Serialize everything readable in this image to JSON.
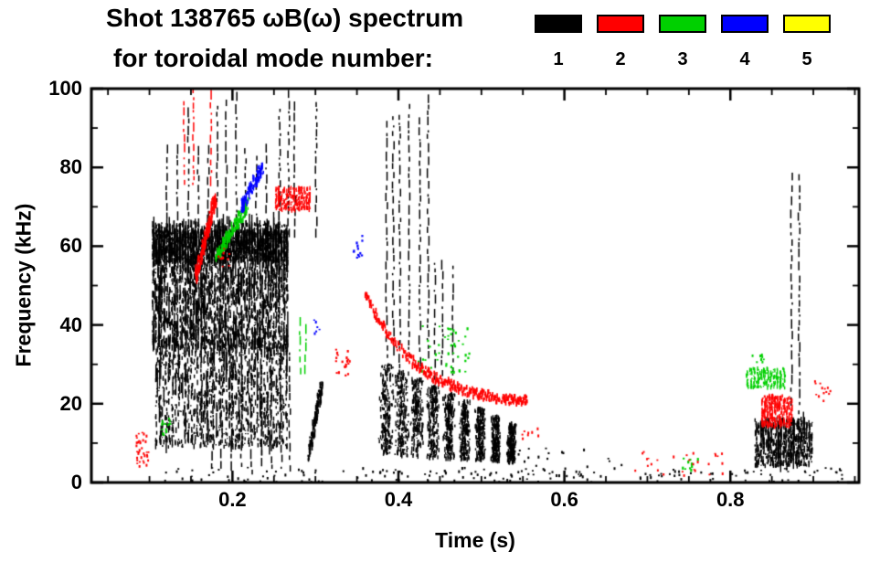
{
  "chart_data": {
    "type": "scatter",
    "title": "Shot 138765 ωB(ω) spectrum",
    "subtitle": "for toroidal mode number:",
    "xlabel": "Time (s)",
    "ylabel": "Frequency (kHz)",
    "xlim": [
      0.03,
      0.955
    ],
    "ylim": [
      0,
      100
    ],
    "xticks": [
      0.2,
      0.4,
      0.6,
      0.8
    ],
    "xtick_labels": [
      "0.2",
      "0.4",
      "0.6",
      "0.8"
    ],
    "yticks": [
      0,
      20,
      40,
      60,
      80,
      100
    ],
    "ytick_labels": [
      "0",
      "20",
      "40",
      "60",
      "80",
      "100"
    ],
    "x_minor_step": 0.05,
    "y_minor_step": 10,
    "grid": false,
    "legend_position": "top-right",
    "modes": [
      {
        "n": "1",
        "color": "#000000"
      },
      {
        "n": "2",
        "color": "#ff0000"
      },
      {
        "n": "3",
        "color": "#00d000"
      },
      {
        "n": "4",
        "color": "#0000ff"
      },
      {
        "n": "5",
        "color": "#ffff00"
      }
    ],
    "clusters": [
      {
        "mode": 1,
        "type": "blob",
        "t": [
          0.104,
          0.268
        ],
        "f": [
          34,
          66
        ],
        "count": 2800,
        "col": 0.0032,
        "hmax": 7,
        "tallfrac": 0.07
      },
      {
        "mode": 1,
        "type": "blob",
        "t": [
          0.108,
          0.268
        ],
        "f": [
          9,
          35
        ],
        "count": 1350,
        "col": 0.0038,
        "hmax": 6,
        "tallfrac": 0.05
      },
      {
        "mode": 1,
        "type": "blob",
        "t": [
          0.104,
          0.268
        ],
        "f": [
          56,
          64
        ],
        "count": 1500,
        "col": 0.0032,
        "hmax": 6,
        "tallfrac": 0
      },
      {
        "mode": 1,
        "type": "vstreaks",
        "ts": [
          0.146,
          0.181,
          0.192,
          0.204,
          0.256,
          0.267,
          0.274,
          0.3
        ],
        "f": [
          60,
          100
        ]
      },
      {
        "mode": 1,
        "type": "vstreaks",
        "ts": [
          0.12,
          0.133,
          0.158,
          0.17,
          0.215,
          0.228,
          0.24
        ],
        "f": [
          64,
          86
        ]
      },
      {
        "mode": 1,
        "type": "vstreaks",
        "ts": [
          0.175,
          0.186,
          0.198,
          0.21,
          0.222,
          0.234,
          0.246,
          0.258,
          0.268
        ],
        "f": [
          2,
          38
        ]
      },
      {
        "mode": 1,
        "type": "vstreaks",
        "ts": [
          0.385,
          0.393,
          0.401,
          0.412,
          0.425,
          0.435
        ],
        "f": [
          28,
          100
        ]
      },
      {
        "mode": 1,
        "type": "vstreaks",
        "ts": [
          0.443,
          0.452,
          0.465
        ],
        "f": [
          26,
          58
        ]
      },
      {
        "mode": 1,
        "type": "bursts",
        "t": [
          0.375,
          0.545
        ],
        "n": 9,
        "ftop": [
          30,
          15
        ],
        "fbot": [
          7,
          5
        ],
        "count": 220
      },
      {
        "mode": 1,
        "type": "diag",
        "t": [
          0.29,
          0.307
        ],
        "f": [
          6,
          25
        ],
        "count": 130
      },
      {
        "mode": 1,
        "type": "blob",
        "t": [
          0.83,
          0.9
        ],
        "f": [
          4,
          16
        ],
        "count": 700,
        "col": 0.003,
        "hmax": 6,
        "tallfrac": 0.04
      },
      {
        "mode": 1,
        "type": "vstreaks",
        "ts": [
          0.873,
          0.882
        ],
        "f": [
          16,
          88
        ]
      },
      {
        "mode": 1,
        "type": "dots",
        "t": [
          0.09,
          0.94
        ],
        "f": [
          0.3,
          4
        ],
        "count": 170,
        "size": 2
      },
      {
        "mode": 1,
        "type": "dots",
        "t": [
          0.53,
          0.67
        ],
        "f": [
          3,
          9
        ],
        "count": 22,
        "size": 2
      },
      {
        "mode": 3,
        "type": "diag",
        "t": [
          0.18,
          0.218
        ],
        "f": [
          57,
          71
        ],
        "count": 150
      },
      {
        "mode": 3,
        "type": "vstreaks",
        "ts": [
          0.281,
          0.287
        ],
        "f": [
          27,
          41
        ]
      },
      {
        "mode": 3,
        "type": "dots",
        "t": [
          0.42,
          0.485
        ],
        "f": [
          28,
          40
        ],
        "count": 45,
        "size": 2.2
      },
      {
        "mode": 3,
        "type": "blob",
        "t": [
          0.82,
          0.868
        ],
        "f": [
          24,
          29
        ],
        "count": 200,
        "col": 0.004,
        "hmax": 4,
        "tallfrac": 0
      },
      {
        "mode": 3,
        "type": "dots",
        "t": [
          0.114,
          0.124
        ],
        "f": [
          12,
          17
        ],
        "count": 14,
        "size": 2.2
      },
      {
        "mode": 3,
        "type": "dots",
        "t": [
          0.738,
          0.76
        ],
        "f": [
          3,
          7
        ],
        "count": 10,
        "size": 2.2
      },
      {
        "mode": 3,
        "type": "dots",
        "t": [
          0.825,
          0.84
        ],
        "f": [
          30,
          33
        ],
        "count": 8,
        "size": 2
      },
      {
        "mode": 4,
        "type": "diag",
        "t": [
          0.21,
          0.235
        ],
        "f": [
          70,
          80
        ],
        "count": 110
      },
      {
        "mode": 4,
        "type": "dots",
        "t": [
          0.344,
          0.356
        ],
        "f": [
          57,
          63
        ],
        "count": 12,
        "size": 2.2
      },
      {
        "mode": 4,
        "type": "dots",
        "t": [
          0.295,
          0.305
        ],
        "f": [
          38,
          42
        ],
        "count": 6,
        "size": 2
      },
      {
        "mode": 2,
        "type": "diag",
        "t": [
          0.155,
          0.178
        ],
        "f": [
          52,
          72
        ],
        "count": 200
      },
      {
        "mode": 2,
        "type": "blob",
        "t": [
          0.252,
          0.295
        ],
        "f": [
          69,
          75
        ],
        "count": 280,
        "col": 0.003,
        "hmax": 4,
        "tallfrac": 0
      },
      {
        "mode": 2,
        "type": "chirp",
        "t": [
          0.36,
          0.555
        ],
        "f0": 48,
        "f1": 19.5,
        "decay": 3.2,
        "count": 320
      },
      {
        "mode": 2,
        "type": "blob",
        "t": [
          0.838,
          0.876
        ],
        "f": [
          14,
          22
        ],
        "count": 300,
        "col": 0.003,
        "hmax": 5,
        "tallfrac": 0
      },
      {
        "mode": 2,
        "type": "vstreaks",
        "ts": [
          0.141,
          0.152,
          0.173
        ],
        "f": [
          74,
          100
        ]
      },
      {
        "mode": 2,
        "type": "dots",
        "t": [
          0.083,
          0.1
        ],
        "f": [
          4,
          13
        ],
        "count": 35,
        "size": 2
      },
      {
        "mode": 2,
        "type": "dots",
        "t": [
          0.322,
          0.342
        ],
        "f": [
          27,
          34
        ],
        "count": 20,
        "size": 2.2
      },
      {
        "mode": 2,
        "type": "dots",
        "t": [
          0.68,
          0.79
        ],
        "f": [
          2,
          8
        ],
        "count": 28,
        "size": 2
      },
      {
        "mode": 2,
        "type": "dots",
        "t": [
          0.9,
          0.92
        ],
        "f": [
          20,
          26
        ],
        "count": 14,
        "size": 2
      },
      {
        "mode": 2,
        "type": "dots",
        "t": [
          0.545,
          0.568
        ],
        "f": [
          11,
          14
        ],
        "count": 8,
        "size": 2
      },
      {
        "mode": 2,
        "type": "dots",
        "t": [
          0.182,
          0.196
        ],
        "f": [
          54,
          60
        ],
        "count": 12,
        "size": 2
      }
    ]
  }
}
